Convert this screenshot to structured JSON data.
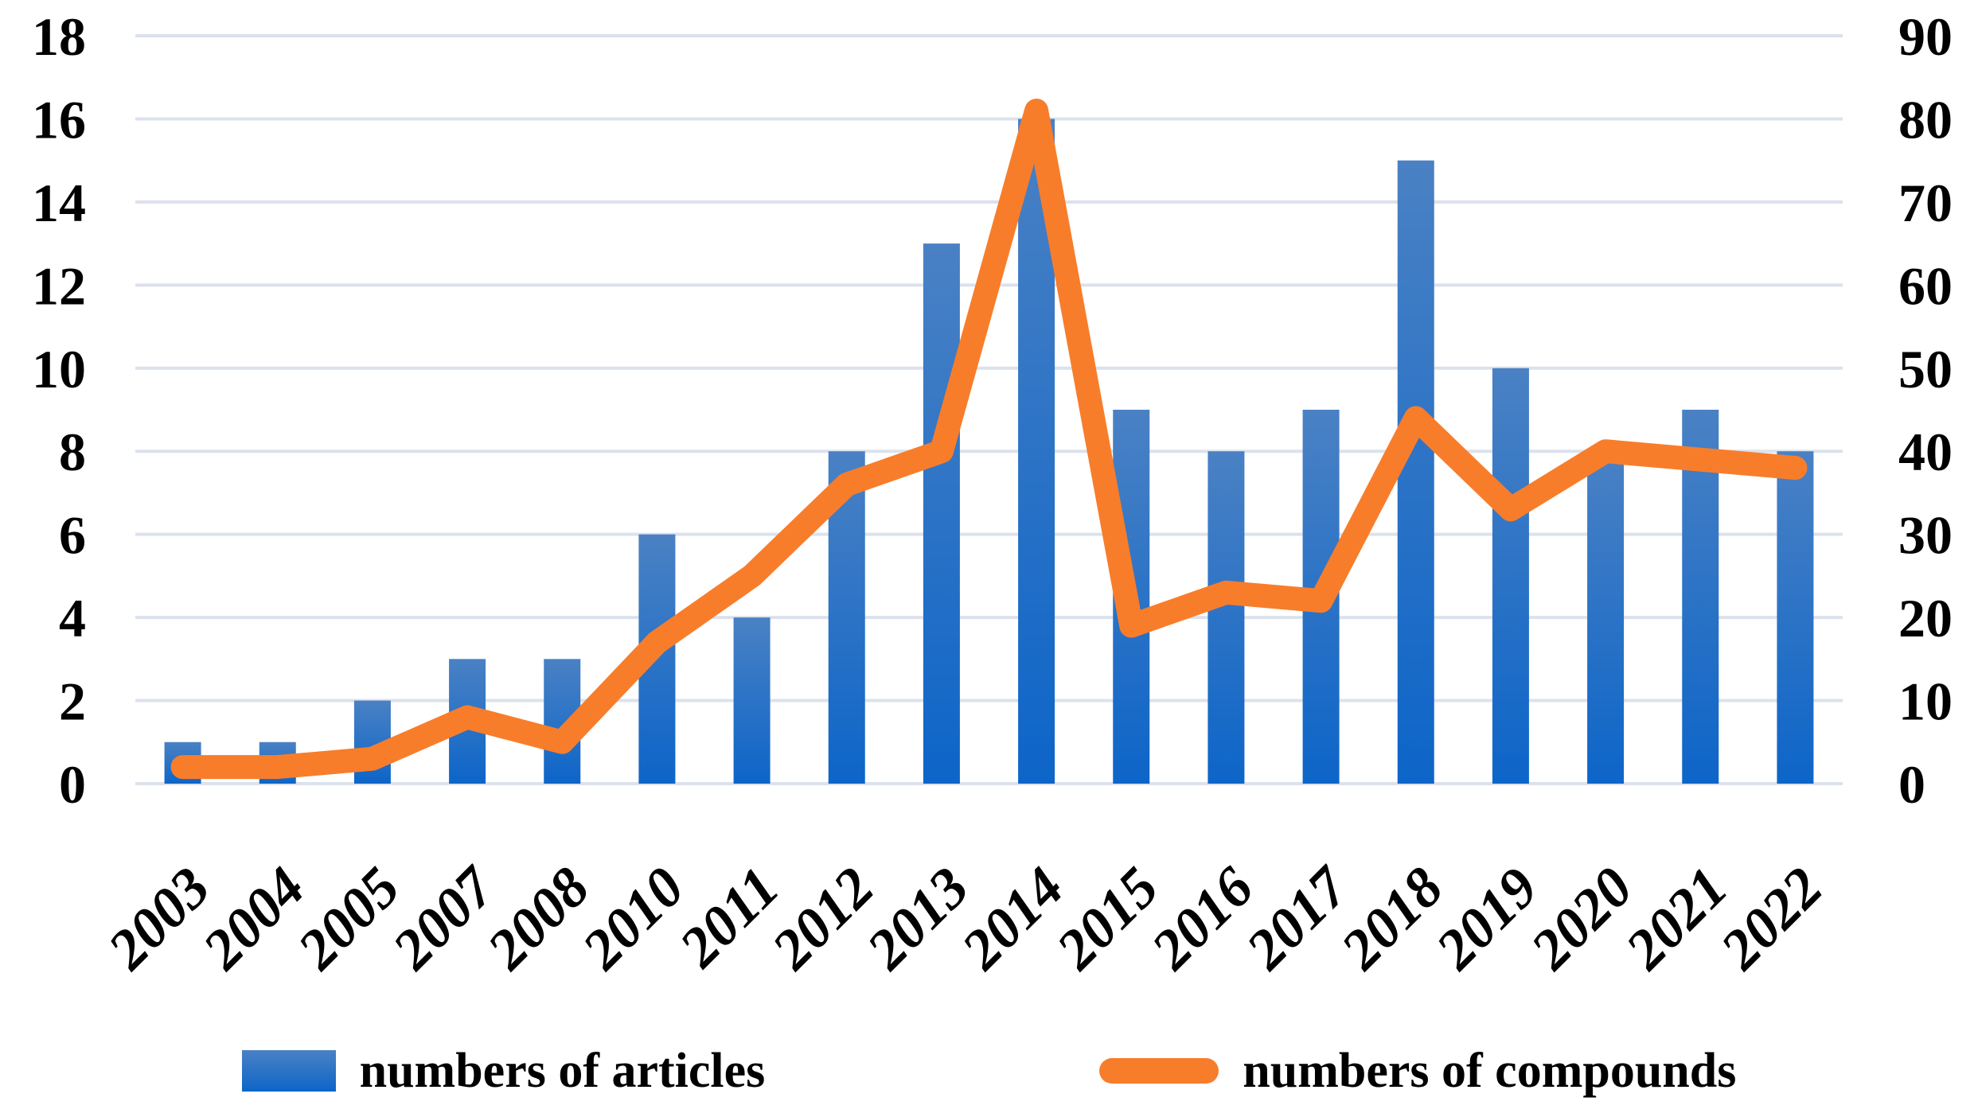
{
  "figure": {
    "background": "#ffffff"
  },
  "chart_data": {
    "type": "bar",
    "subtype": "combo bar + line, dual axis",
    "title": "",
    "xlabel": "",
    "ylabel": "",
    "categories": [
      "2003",
      "2004",
      "2005",
      "2007",
      "2008",
      "2010",
      "2011",
      "2012",
      "2013",
      "2014",
      "2015",
      "2016",
      "2017",
      "2018",
      "2019",
      "2020",
      "2021",
      "2022"
    ],
    "series": [
      {
        "name": "numbers of articles",
        "type": "bar",
        "axis": "left",
        "values": [
          1,
          1,
          2,
          3,
          3,
          6,
          4,
          8,
          13,
          16,
          9,
          8,
          9,
          15,
          10,
          8,
          9,
          8
        ]
      },
      {
        "name": "numbers of compounds",
        "type": "line",
        "axis": "right",
        "values": [
          2,
          2,
          3,
          8,
          5,
          17,
          25,
          36,
          40,
          81,
          19,
          23,
          22,
          44,
          33,
          40,
          39,
          38
        ]
      }
    ],
    "left_axis": {
      "min": 0,
      "max": 18,
      "tick_step": 2,
      "ticks": [
        "0",
        "2",
        "4",
        "6",
        "8",
        "10",
        "12",
        "14",
        "16",
        "18"
      ]
    },
    "right_axis": {
      "min": 0,
      "max": 90,
      "tick_step": 10,
      "ticks": [
        "0",
        "10",
        "20",
        "30",
        "40",
        "50",
        "60",
        "70",
        "80",
        "90"
      ]
    },
    "grid": true,
    "legend_position": "bottom",
    "x_label_rotation_deg": -45,
    "colors": {
      "bar_gradient_top": "#4a81c4",
      "bar_gradient_bottom": "#0d65c8",
      "line": "#f87d2b",
      "gridline": "#dce2ec",
      "text": "#000000"
    }
  },
  "legend": {
    "items": [
      {
        "label": "numbers of articles"
      },
      {
        "label": "numbers of compounds"
      }
    ]
  }
}
